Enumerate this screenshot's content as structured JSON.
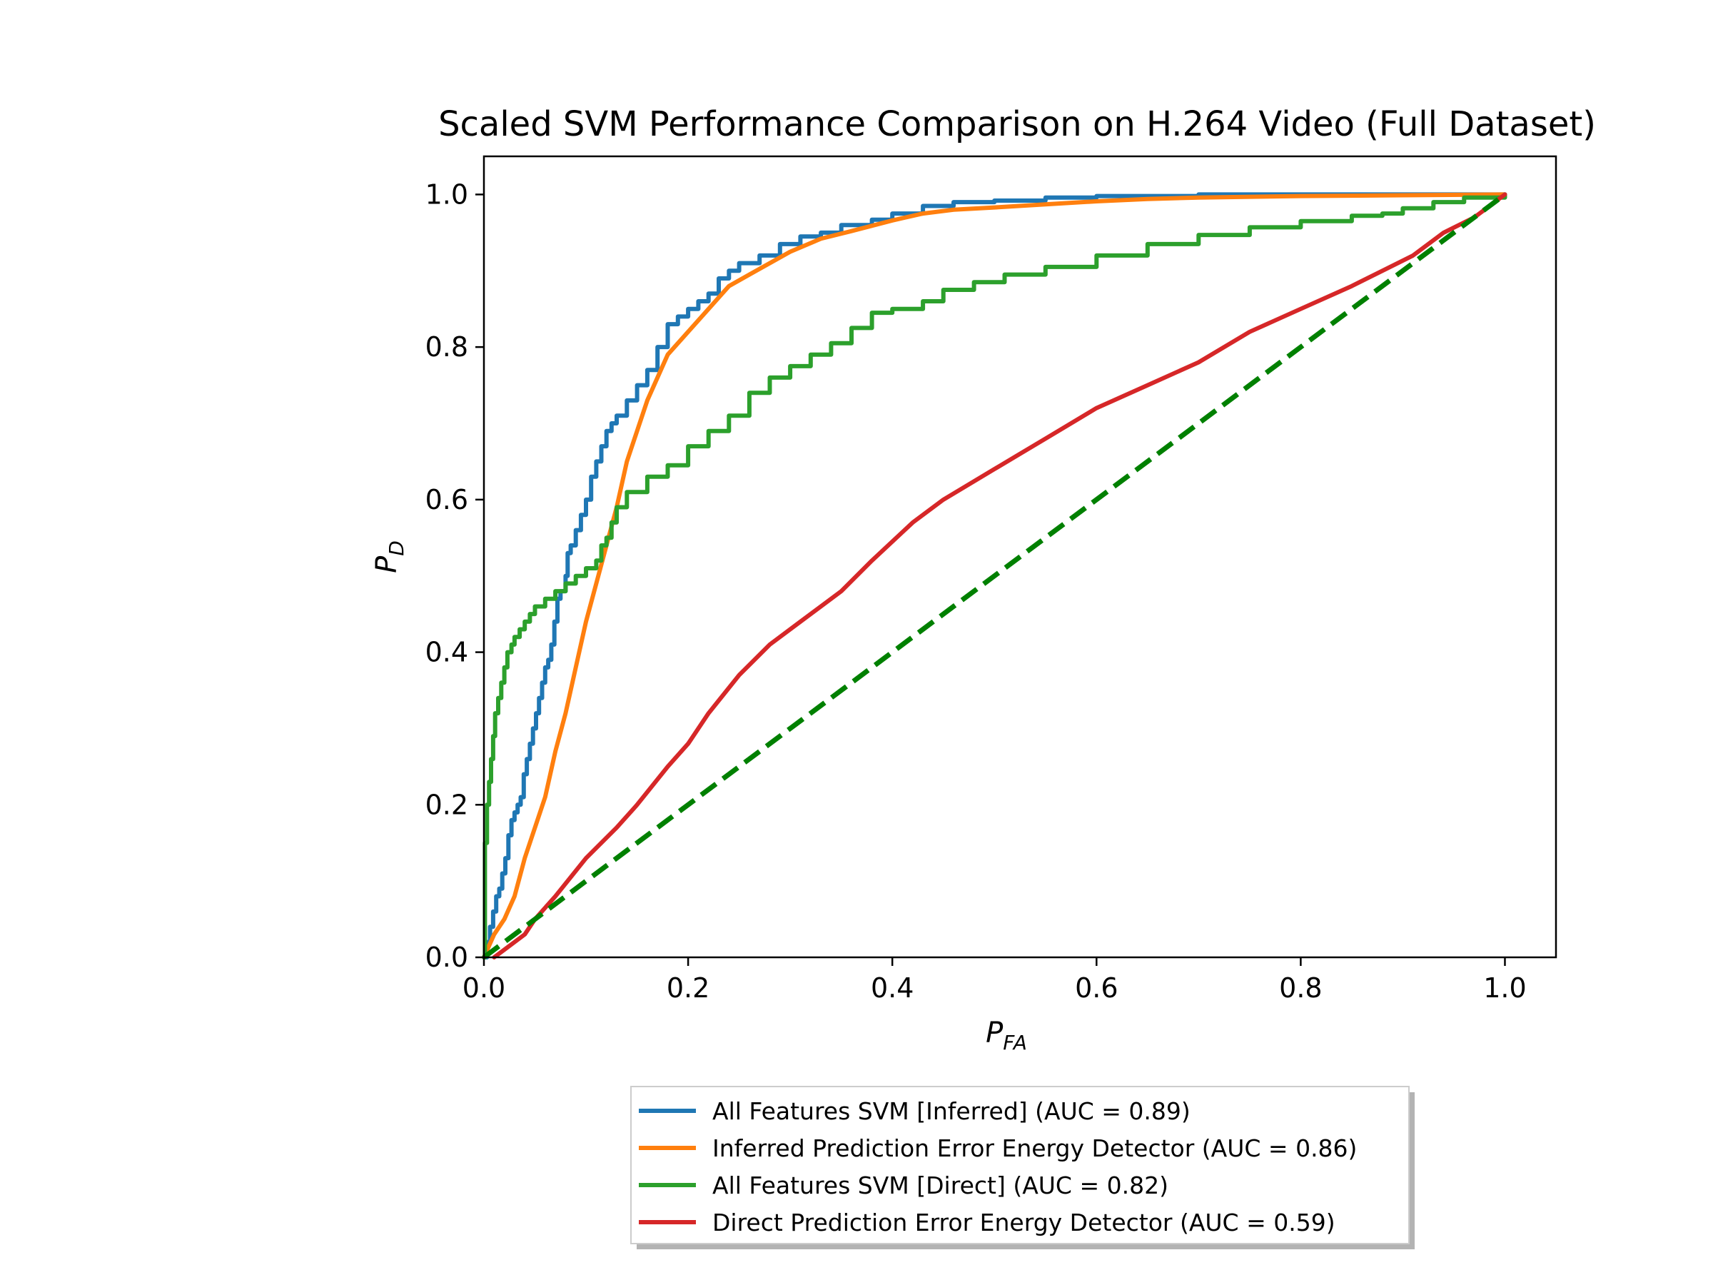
{
  "chart_data": {
    "type": "line",
    "title": "Scaled SVM Performance Comparison on H.264 Video (Full Dataset)",
    "xlabel": {
      "main": "P",
      "sub": "FA"
    },
    "ylabel": {
      "main": "P",
      "sub": "D"
    },
    "xlim": [
      0.0,
      1.05
    ],
    "ylim": [
      0.0,
      1.05
    ],
    "xticks": [
      0.0,
      0.2,
      0.4,
      0.6,
      0.8,
      1.0
    ],
    "yticks": [
      0.0,
      0.2,
      0.4,
      0.6,
      0.8,
      1.0
    ],
    "xtick_labels": [
      "0.0",
      "0.2",
      "0.4",
      "0.6",
      "0.8",
      "1.0"
    ],
    "ytick_labels": [
      "0.0",
      "0.2",
      "0.4",
      "0.6",
      "0.8",
      "1.0"
    ],
    "grid": false,
    "legend_position": "below-plot",
    "series": [
      {
        "name": "All Features SVM [Inferred] (AUC = 0.89)",
        "color": "#1f77b4",
        "step": true,
        "points": [
          [
            0,
            0
          ],
          [
            0.003,
            0.02
          ],
          [
            0.006,
            0.04
          ],
          [
            0.009,
            0.06
          ],
          [
            0.012,
            0.08
          ],
          [
            0.015,
            0.09
          ],
          [
            0.018,
            0.11
          ],
          [
            0.021,
            0.13
          ],
          [
            0.024,
            0.16
          ],
          [
            0.027,
            0.18
          ],
          [
            0.03,
            0.19
          ],
          [
            0.033,
            0.2
          ],
          [
            0.036,
            0.21
          ],
          [
            0.039,
            0.24
          ],
          [
            0.042,
            0.26
          ],
          [
            0.045,
            0.28
          ],
          [
            0.048,
            0.3
          ],
          [
            0.051,
            0.32
          ],
          [
            0.054,
            0.34
          ],
          [
            0.057,
            0.36
          ],
          [
            0.06,
            0.38
          ],
          [
            0.063,
            0.39
          ],
          [
            0.066,
            0.41
          ],
          [
            0.069,
            0.44
          ],
          [
            0.072,
            0.47
          ],
          [
            0.075,
            0.48
          ],
          [
            0.08,
            0.5
          ],
          [
            0.082,
            0.53
          ],
          [
            0.085,
            0.54
          ],
          [
            0.09,
            0.56
          ],
          [
            0.095,
            0.58
          ],
          [
            0.1,
            0.6
          ],
          [
            0.105,
            0.63
          ],
          [
            0.11,
            0.65
          ],
          [
            0.115,
            0.67
          ],
          [
            0.12,
            0.69
          ],
          [
            0.125,
            0.7
          ],
          [
            0.13,
            0.71
          ],
          [
            0.14,
            0.73
          ],
          [
            0.15,
            0.75
          ],
          [
            0.16,
            0.77
          ],
          [
            0.17,
            0.8
          ],
          [
            0.18,
            0.83
          ],
          [
            0.19,
            0.84
          ],
          [
            0.2,
            0.85
          ],
          [
            0.21,
            0.86
          ],
          [
            0.22,
            0.87
          ],
          [
            0.23,
            0.89
          ],
          [
            0.24,
            0.9
          ],
          [
            0.25,
            0.91
          ],
          [
            0.27,
            0.92
          ],
          [
            0.29,
            0.935
          ],
          [
            0.31,
            0.945
          ],
          [
            0.33,
            0.95
          ],
          [
            0.35,
            0.96
          ],
          [
            0.38,
            0.967
          ],
          [
            0.4,
            0.975
          ],
          [
            0.43,
            0.985
          ],
          [
            0.46,
            0.99
          ],
          [
            0.5,
            0.992
          ],
          [
            0.55,
            0.996
          ],
          [
            0.6,
            0.998
          ],
          [
            0.7,
            1.0
          ],
          [
            1.0,
            1.0
          ]
        ]
      },
      {
        "name": "Inferred Prediction Error Energy Detector (AUC = 0.86)",
        "color": "#ff7f0e",
        "step": false,
        "points": [
          [
            0,
            0
          ],
          [
            0.01,
            0.03
          ],
          [
            0.02,
            0.05
          ],
          [
            0.03,
            0.08
          ],
          [
            0.04,
            0.13
          ],
          [
            0.05,
            0.17
          ],
          [
            0.06,
            0.21
          ],
          [
            0.07,
            0.27
          ],
          [
            0.08,
            0.32
          ],
          [
            0.09,
            0.38
          ],
          [
            0.1,
            0.44
          ],
          [
            0.11,
            0.49
          ],
          [
            0.12,
            0.54
          ],
          [
            0.13,
            0.59
          ],
          [
            0.14,
            0.65
          ],
          [
            0.15,
            0.69
          ],
          [
            0.16,
            0.73
          ],
          [
            0.18,
            0.79
          ],
          [
            0.2,
            0.82
          ],
          [
            0.22,
            0.85
          ],
          [
            0.24,
            0.88
          ],
          [
            0.26,
            0.895
          ],
          [
            0.28,
            0.91
          ],
          [
            0.3,
            0.925
          ],
          [
            0.33,
            0.942
          ],
          [
            0.36,
            0.952
          ],
          [
            0.4,
            0.966
          ],
          [
            0.43,
            0.975
          ],
          [
            0.46,
            0.98
          ],
          [
            0.5,
            0.983
          ],
          [
            0.55,
            0.987
          ],
          [
            0.6,
            0.991
          ],
          [
            0.65,
            0.994
          ],
          [
            0.7,
            0.996
          ],
          [
            0.8,
            0.998
          ],
          [
            0.9,
            0.999
          ],
          [
            1.0,
            1.0
          ]
        ]
      },
      {
        "name": "All Features SVM [Direct] (AUC = 0.82)",
        "color": "#2ca02c",
        "step": true,
        "points": [
          [
            0,
            0.0
          ],
          [
            0.001,
            0.15
          ],
          [
            0.003,
            0.2
          ],
          [
            0.005,
            0.23
          ],
          [
            0.007,
            0.26
          ],
          [
            0.009,
            0.29
          ],
          [
            0.011,
            0.32
          ],
          [
            0.014,
            0.34
          ],
          [
            0.017,
            0.36
          ],
          [
            0.02,
            0.38
          ],
          [
            0.023,
            0.4
          ],
          [
            0.027,
            0.41
          ],
          [
            0.03,
            0.42
          ],
          [
            0.035,
            0.43
          ],
          [
            0.04,
            0.44
          ],
          [
            0.045,
            0.45
          ],
          [
            0.05,
            0.46
          ],
          [
            0.06,
            0.47
          ],
          [
            0.07,
            0.48
          ],
          [
            0.08,
            0.49
          ],
          [
            0.09,
            0.5
          ],
          [
            0.1,
            0.51
          ],
          [
            0.11,
            0.52
          ],
          [
            0.115,
            0.54
          ],
          [
            0.12,
            0.55
          ],
          [
            0.125,
            0.57
          ],
          [
            0.13,
            0.59
          ],
          [
            0.14,
            0.61
          ],
          [
            0.16,
            0.63
          ],
          [
            0.18,
            0.645
          ],
          [
            0.2,
            0.67
          ],
          [
            0.22,
            0.69
          ],
          [
            0.24,
            0.71
          ],
          [
            0.26,
            0.74
          ],
          [
            0.28,
            0.76
          ],
          [
            0.3,
            0.775
          ],
          [
            0.32,
            0.79
          ],
          [
            0.34,
            0.805
          ],
          [
            0.36,
            0.825
          ],
          [
            0.38,
            0.845
          ],
          [
            0.4,
            0.85
          ],
          [
            0.43,
            0.86
          ],
          [
            0.45,
            0.875
          ],
          [
            0.48,
            0.885
          ],
          [
            0.51,
            0.895
          ],
          [
            0.55,
            0.905
          ],
          [
            0.6,
            0.92
          ],
          [
            0.65,
            0.935
          ],
          [
            0.7,
            0.947
          ],
          [
            0.75,
            0.957
          ],
          [
            0.8,
            0.965
          ],
          [
            0.85,
            0.972
          ],
          [
            0.88,
            0.975
          ],
          [
            0.9,
            0.982
          ],
          [
            0.93,
            0.99
          ],
          [
            0.96,
            0.996
          ],
          [
            1.0,
            1.0
          ]
        ]
      },
      {
        "name": "Direct Prediction Error Energy Detector (AUC = 0.59)",
        "color": "#d62728",
        "step": false,
        "points": [
          [
            0.01,
            0.0
          ],
          [
            0.02,
            0.01
          ],
          [
            0.03,
            0.02
          ],
          [
            0.04,
            0.03
          ],
          [
            0.05,
            0.05
          ],
          [
            0.07,
            0.08
          ],
          [
            0.1,
            0.13
          ],
          [
            0.13,
            0.17
          ],
          [
            0.15,
            0.2
          ],
          [
            0.18,
            0.25
          ],
          [
            0.2,
            0.28
          ],
          [
            0.22,
            0.32
          ],
          [
            0.25,
            0.37
          ],
          [
            0.28,
            0.41
          ],
          [
            0.31,
            0.44
          ],
          [
            0.35,
            0.48
          ],
          [
            0.38,
            0.52
          ],
          [
            0.42,
            0.57
          ],
          [
            0.45,
            0.6
          ],
          [
            0.5,
            0.64
          ],
          [
            0.55,
            0.68
          ],
          [
            0.6,
            0.72
          ],
          [
            0.65,
            0.75
          ],
          [
            0.7,
            0.78
          ],
          [
            0.75,
            0.82
          ],
          [
            0.8,
            0.85
          ],
          [
            0.85,
            0.88
          ],
          [
            0.88,
            0.9
          ],
          [
            0.91,
            0.92
          ],
          [
            0.94,
            0.95
          ],
          [
            0.97,
            0.97
          ],
          [
            0.99,
            0.99
          ],
          [
            1.0,
            1.0
          ]
        ]
      },
      {
        "name": "",
        "color": "#008000",
        "dashed": true,
        "legend": false,
        "points": [
          [
            0,
            0
          ],
          [
            1,
            1
          ]
        ]
      }
    ]
  }
}
